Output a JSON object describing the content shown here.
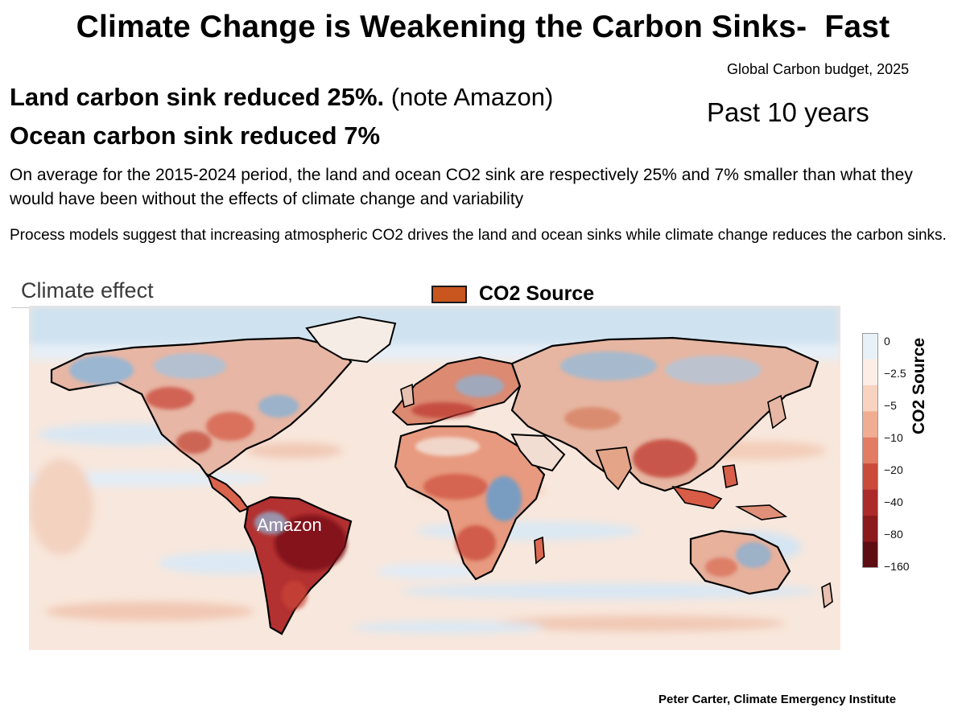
{
  "title": "Climate Change is Weakening the Carbon Sinks-  Fast",
  "source_credit": "Global Carbon budget, 2025",
  "headline_land_bold": "Land carbon sink reduced 25%.",
  "headline_land_note": " (note Amazon)",
  "headline_ocean": "Ocean carbon sink reduced 7%",
  "past_years": "Past 10 years",
  "paragraph_1": "On average for the 2015-2024 period, the land and ocean CO2 sink are respectively 25% and 7% smaller than what they would have been without the effects of climate change and variability",
  "paragraph_2": "Process models suggest that increasing atmospheric CO2 drives the land and ocean sinks while climate change reduces the carbon sinks.",
  "map": {
    "panel_label": "Climate effect",
    "legend_label": "CO2 Source",
    "legend_color": "#c8561e",
    "region_label": "Amazon",
    "colorbar": {
      "title": "CO2 Source",
      "ticks": [
        "0",
        "−2.5",
        "−5",
        "−10",
        "−20",
        "−40",
        "−80",
        "−160"
      ],
      "colors": [
        "#e9f1f8",
        "#fbeee6",
        "#f7d3c0",
        "#f0ad91",
        "#e27c64",
        "#cc4a3b",
        "#ad2a2b",
        "#8b1a1d",
        "#5e0d12"
      ]
    }
  },
  "footer_credit": "Peter Carter, Climate Emergency Institute"
}
